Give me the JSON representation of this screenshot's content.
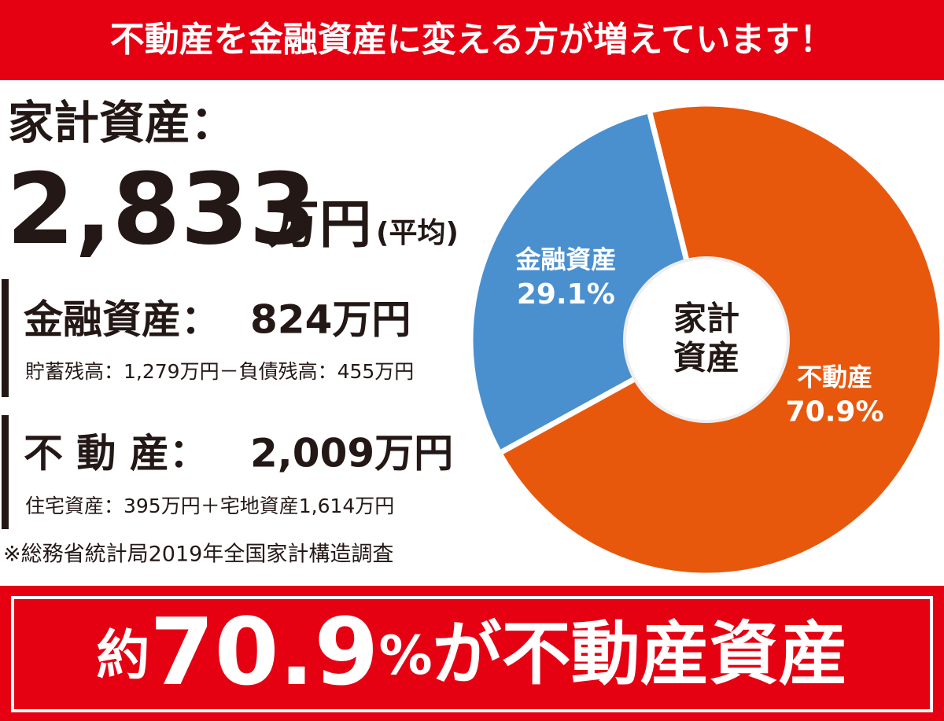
{
  "header": {
    "title": "不動産を金融資産に変える方が増えています！"
  },
  "household": {
    "label": "家計資産：",
    "amount": "2,833",
    "unit": "万円",
    "note": "(平均)"
  },
  "financial": {
    "label": "金融資産：",
    "amount": "824万円",
    "detail": "貯蓄残高：1,279万円－負債残高：455万円"
  },
  "real_estate": {
    "label": "不 動 産：",
    "amount": "2,009万円",
    "detail": "住宅資産：395万円＋宅地資産1,614万円"
  },
  "source": "※総務省統計局2019年全国家計構造調査",
  "footer": {
    "prefix": "約",
    "number": "70.9",
    "unit": "%",
    "suffix": "が不動産資産"
  },
  "chart_data": {
    "type": "pie",
    "center_label": [
      "家計",
      "資産"
    ],
    "categories": [
      "金融資産",
      "不動産"
    ],
    "values": [
      29.1,
      70.9
    ],
    "value_labels": [
      "29.1%",
      "70.9%"
    ],
    "colors": [
      "#4a90cf",
      "#e8580c"
    ]
  }
}
